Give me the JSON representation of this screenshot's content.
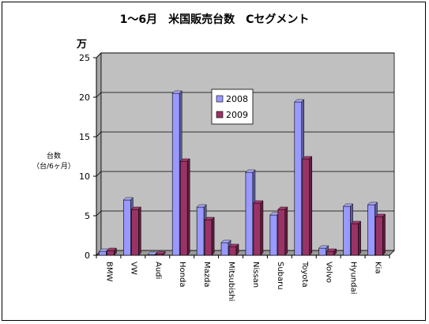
{
  "chart_data": {
    "type": "bar",
    "title": "1～6月　米国販売台数　Cセグメント",
    "unit": "万",
    "ylabel": [
      "台数",
      "（台/6ヶ月）"
    ],
    "categories": [
      "BMW",
      "VW",
      "Audi",
      "Honda",
      "Mazda",
      "Mitsubishi",
      "Nissan",
      "Subaru",
      "Toyota",
      "Volvo",
      "Hyundai",
      "Kia"
    ],
    "series": [
      {
        "name": "2008",
        "color": "#9999ff",
        "values": [
          0.5,
          7.0,
          0.1,
          20.5,
          6.1,
          1.6,
          10.5,
          5.1,
          19.4,
          0.9,
          6.2,
          6.4
        ]
      },
      {
        "name": "2009",
        "color": "#993366",
        "values": [
          0.6,
          5.8,
          0.15,
          11.9,
          4.5,
          1.1,
          6.6,
          5.8,
          12.2,
          0.5,
          4.0,
          4.9
        ]
      }
    ],
    "ylim": [
      0,
      25
    ],
    "yticks": [
      0,
      5,
      10,
      15,
      20,
      25
    ],
    "grid": true,
    "legend_position": "inside-center",
    "plot_background": "#c0c0c0"
  }
}
